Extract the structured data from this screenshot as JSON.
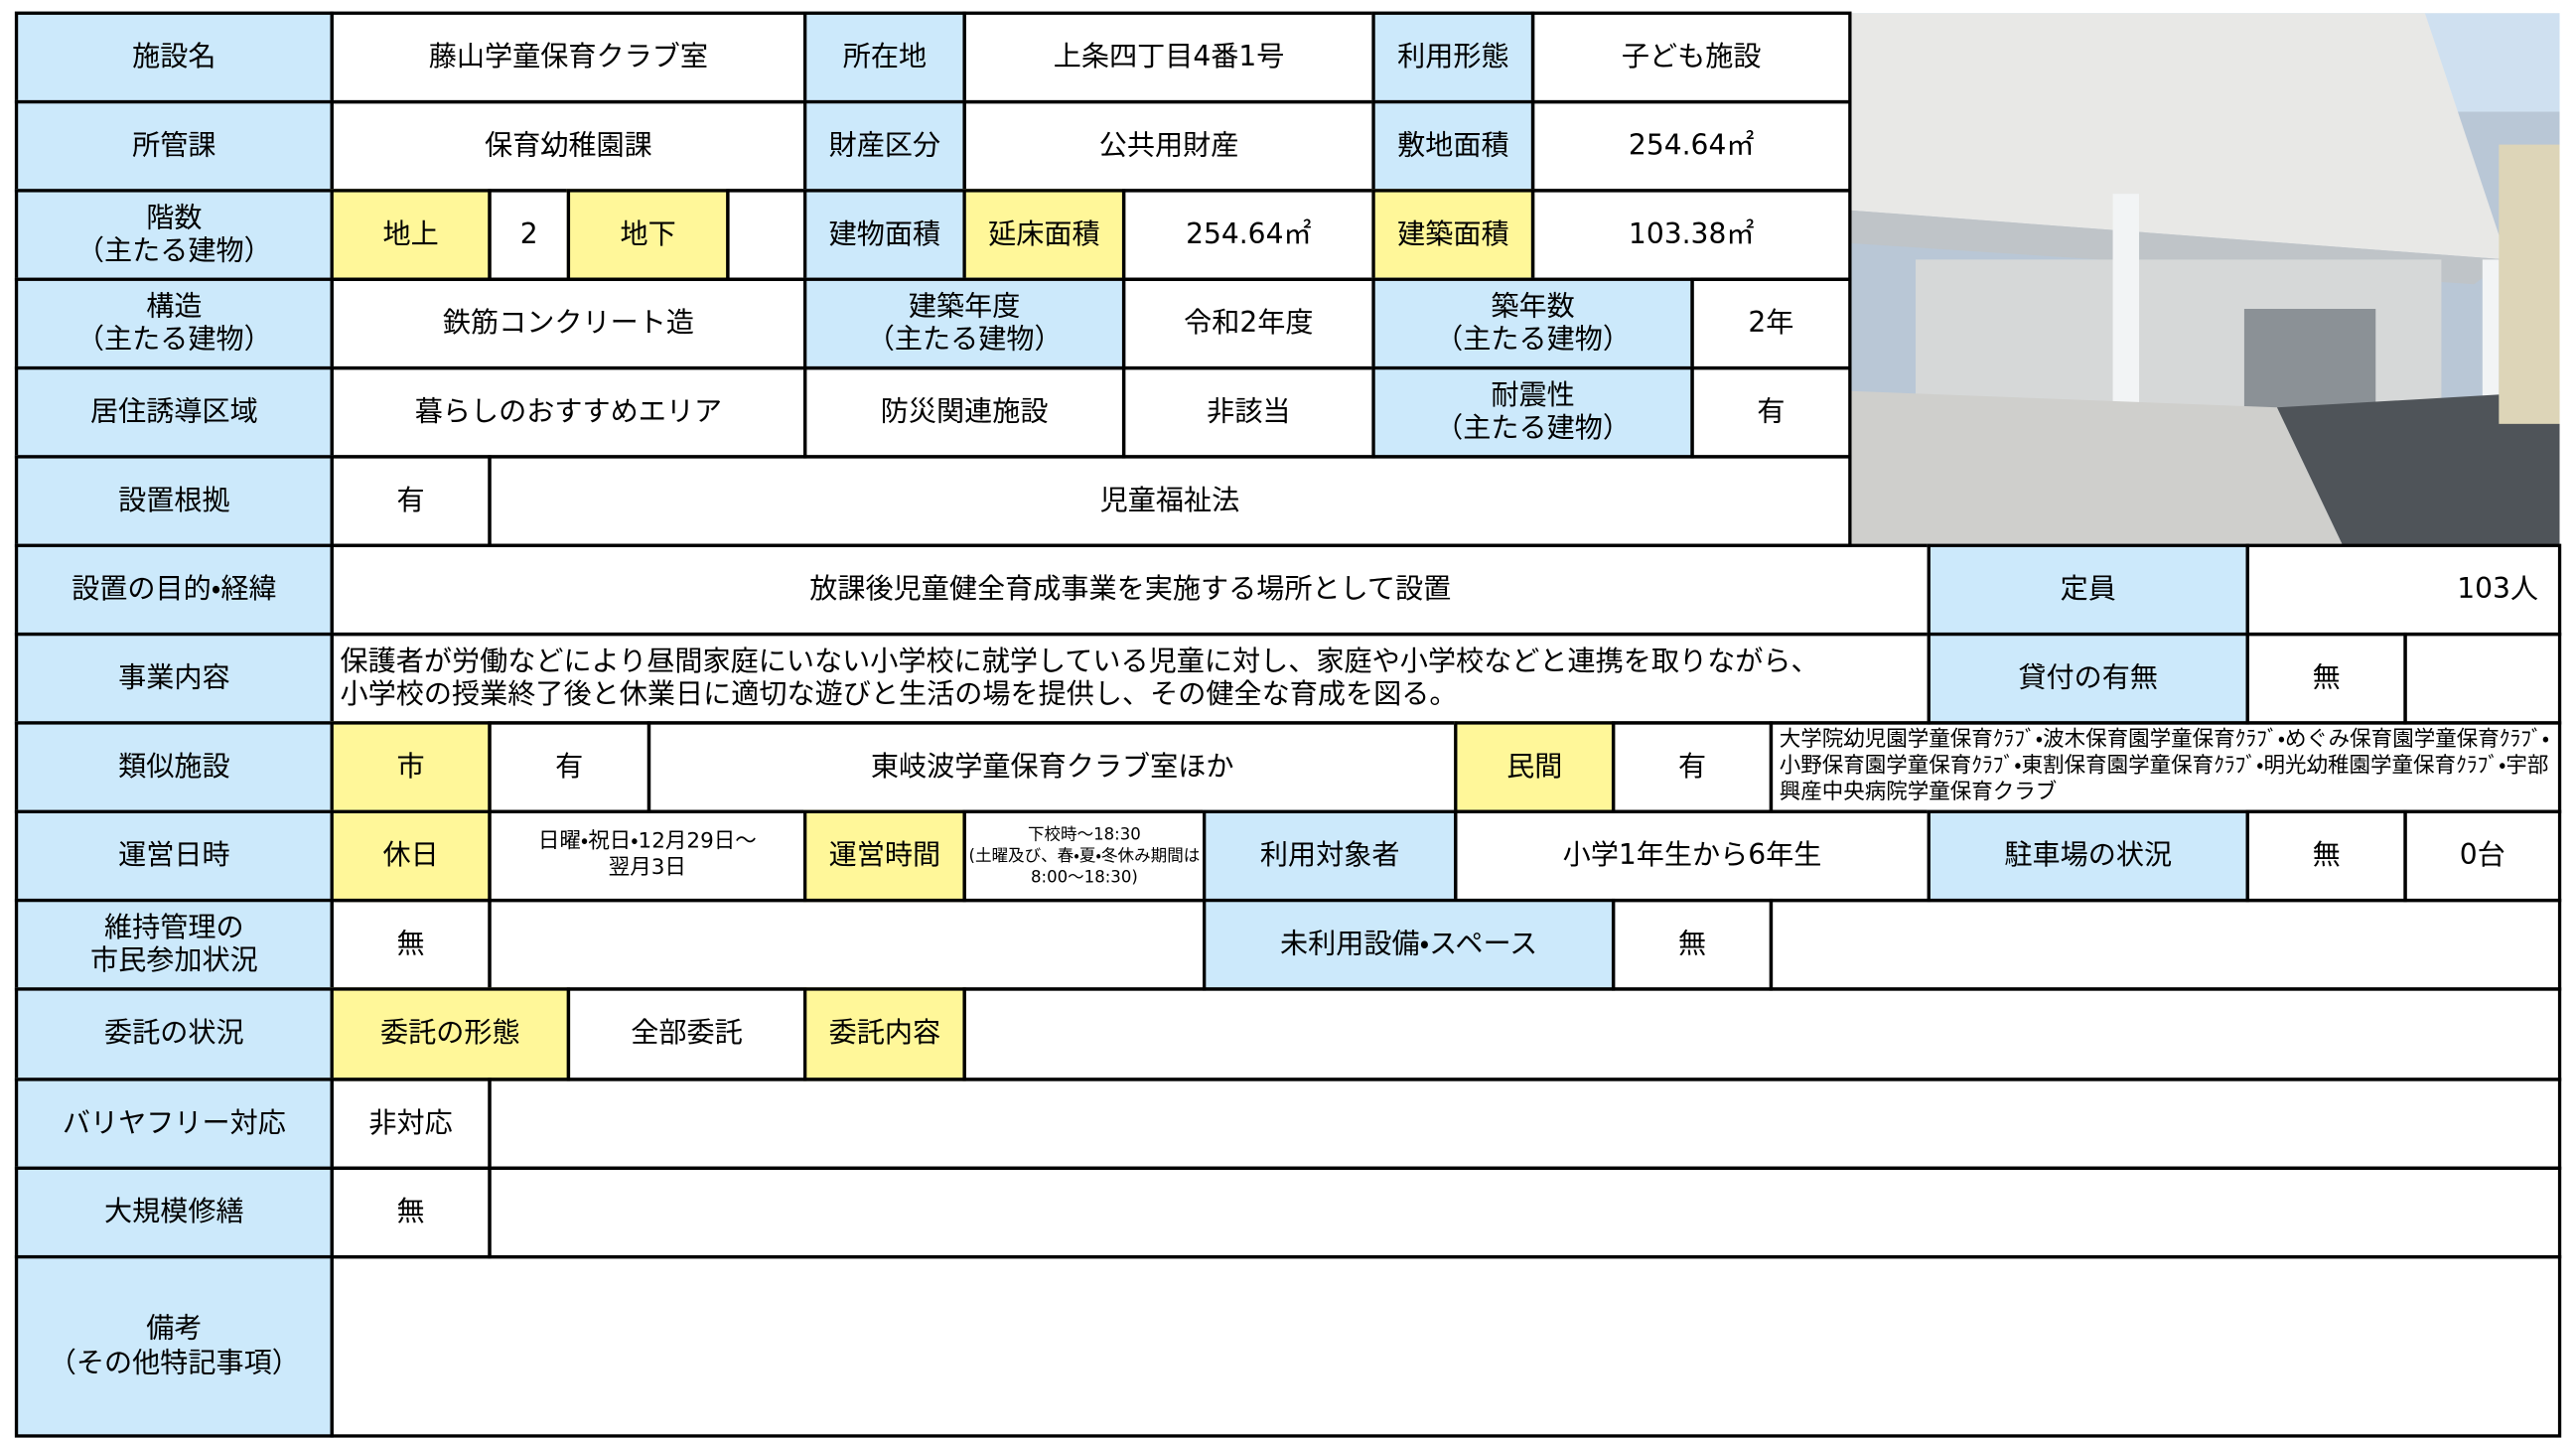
{
  "table": {
    "rows": [
      [
        "施設名",
        "藤山学童保育クラブ室",
        "所在地",
        "上条四丁目4番1号",
        "利用形態",
        "子ども施設"
      ],
      [
        "所管課",
        "保育幼稚園課",
        "財産区分",
        "公共用財産",
        "敷地面積",
        "254.64㎡"
      ],
      [
        "階数\n（主たる建物）",
        "地上",
        "2",
        "地下",
        "建物面積",
        "延床面積",
        "254.64㎡",
        "建築面積",
        "103.38㎡"
      ],
      [
        "構造\n（主たる建物）",
        "鉄筋コンクリート造",
        "建築年度\n（主たる建物）",
        "令和2年度",
        "築年数\n（主たる建物）",
        "2年"
      ],
      [
        "居住誘導区域",
        "暮らしのおすすめエリア",
        "防災関連施設",
        "非該当",
        "耐震性\n（主たる建物）",
        "有"
      ],
      [
        "設置根拠",
        "有",
        "児童福祉法"
      ],
      [
        "設置の目的・経緯",
        "放課後児童健全育成事業を実施する場所として設置",
        "定員",
        "103人"
      ],
      [
        "事業内容",
        "保護者が労働などにより昼間家庭にいない小学校に就学している児童に対し、家庭や小学校などと連携を取りながら、\n小学校の授業終了後と休業日に適切な遊びと生活の場を提供し、その健全な育成を図る。",
        "貸付の有無",
        "無"
      ],
      [
        "類似施設",
        "市",
        "有",
        "東岐波学童保育クラブ室ほか",
        "民間",
        "有",
        "大学院幼児園学童保育ｸﾗﾌﾞ・波木保育園学童保育ｸﾗﾌﾞ・めぐみ保育園学童保育ｸﾗﾌﾞ・小野保育園学童保育ｸﾗﾌﾞ・東割保育園学童保育ｸﾗﾌﾞ・明光幼稚園学童保育ｸﾗﾌﾞ・宇部興産中央病院学童保育クラブ"
      ],
      [
        "運営日時",
        "休日",
        "日曜・祝日・12月29日～\n翌月3日",
        "運営時間",
        "下校時～18:30\n(土曜及び、春・夏・冬休み期間は8:00～18:30)",
        "利用対象者",
        "小学1年生から6年生",
        "駐車場の状況",
        "無",
        "0台"
      ],
      [
        "維持管理の\n市民参加状況",
        "無",
        "未利用設備・スペース",
        "無"
      ],
      [
        "委託の状況",
        "委託の形態",
        "全部委託",
        "委託内容"
      ],
      [
        "バリヤフリー対応",
        "非対応"
      ],
      [
        "大規模修繕",
        "無"
      ],
      [
        "備考\n（その他特記事項）"
      ]
    ]
  }
}
